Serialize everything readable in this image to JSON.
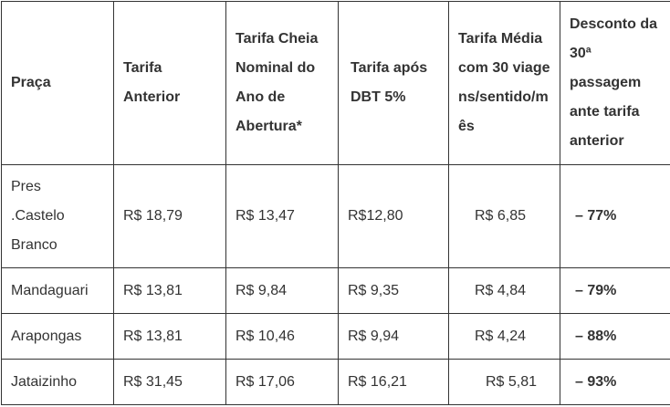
{
  "headers": [
    "Praça",
    "Tarifa Anterior",
    "Tarifa Cheia Nominal do Ano de Abertura*",
    "Tarifa após DBT 5%",
    "Tarifa Média com 30 viagens/sentido/mês",
    "Desconto da 30ª passagem ante tarifa anterior"
  ],
  "rows": [
    [
      "Pres .Castelo Branco",
      "R$ 18,79",
      "R$ 13,47",
      "R$12,80",
      "R$ 6,85",
      "– 77%"
    ],
    [
      "Mandaguari",
      "R$ 13,81",
      "R$ 9,84",
      "R$ 9,35",
      "R$ 4,84",
      "– 79%"
    ],
    [
      "Arapongas",
      "R$ 13,81",
      "R$ 10,46",
      "R$ 9,94",
      "R$ 4,24",
      "– 88%"
    ],
    [
      "Jataizinho",
      "R$ 31,45",
      "R$ 17,06",
      "R$ 16,21",
      "R$ 5,81",
      "– 93%"
    ]
  ]
}
